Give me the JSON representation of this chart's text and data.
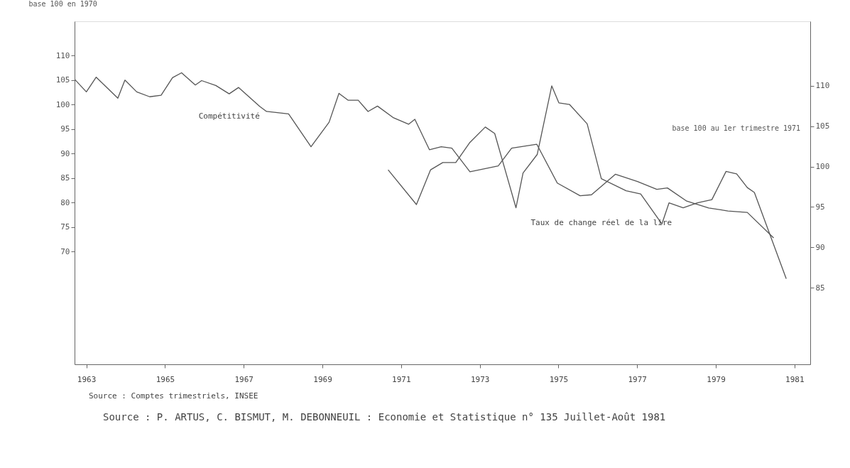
{
  "chart_data": {
    "type": "line",
    "ylabel": "base 100 en 1970",
    "y2label": "base 100 au 1er trimestre 1971",
    "xlim": [
      1962.7,
      1981.4
    ],
    "xticks": [
      1963,
      1965,
      1967,
      1969,
      1971,
      1973,
      1975,
      1977,
      1979,
      1981
    ],
    "ylim": [
      47,
      117
    ],
    "yticks": [
      70,
      75,
      80,
      85,
      90,
      95,
      100,
      105,
      110
    ],
    "y2lim": [
      75.5,
      118
    ],
    "y2ticks": [
      85,
      90,
      95,
      100,
      105,
      110
    ],
    "grid": false,
    "legend": false,
    "marker": "none",
    "line_style": "solid",
    "series": [
      {
        "name": "Compétitivité",
        "color": "#555555",
        "x": [
          1962.71,
          1963.0,
          1963.25,
          1963.8,
          1963.98,
          1964.28,
          1964.61,
          1964.9,
          1965.19,
          1965.42,
          1965.77,
          1965.93,
          1966.29,
          1966.63,
          1966.87,
          1967.41,
          1967.58,
          1968.14,
          1968.71,
          1969.17,
          1969.42,
          1969.65,
          1969.91,
          1970.16,
          1970.4,
          1970.81,
          1971.19,
          1971.35,
          1971.72,
          1972.02,
          1972.29,
          1972.75,
          1973.47,
          1973.81,
          1974.45,
          1974.97,
          1975.55,
          1975.84,
          1976.45,
          1977.01,
          1977.5,
          1977.77,
          1978.26,
          1978.82,
          1979.31,
          1979.8,
          1980.47
        ],
        "values": [
          105.1,
          102.6,
          105.6,
          101.3,
          105.0,
          102.6,
          101.6,
          101.9,
          105.5,
          106.5,
          104.0,
          104.9,
          103.9,
          102.2,
          103.5,
          99.6,
          98.6,
          98.1,
          91.4,
          96.4,
          102.3,
          100.9,
          100.9,
          98.6,
          99.7,
          97.3,
          96.0,
          97.0,
          90.8,
          91.4,
          91.1,
          86.3,
          87.5,
          91.1,
          91.9,
          84.0,
          81.4,
          81.6,
          85.8,
          84.3,
          82.7,
          83.0,
          80.3,
          78.9,
          78.3,
          78.0,
          72.8
        ]
      },
      {
        "name": "Taux de change réel de la lire",
        "color": "#555555",
        "axis": "y2",
        "x": [
          1970.67,
          1971.39,
          1971.75,
          1972.06,
          1972.39,
          1972.75,
          1973.14,
          1973.38,
          1973.92,
          1974.1,
          1974.46,
          1974.83,
          1975.01,
          1975.28,
          1975.73,
          1976.09,
          1976.72,
          1977.09,
          1977.63,
          1977.81,
          1978.17,
          1978.53,
          1978.9,
          1979.26,
          1979.53,
          1979.8,
          1979.98,
          1980.79
        ],
        "values": [
          99.6,
          95.3,
          99.6,
          100.5,
          100.5,
          103.0,
          104.9,
          104.1,
          94.9,
          99.2,
          101.5,
          110.0,
          107.9,
          107.7,
          105.3,
          98.5,
          97.0,
          96.6,
          92.9,
          95.5,
          94.9,
          95.5,
          95.9,
          99.4,
          99.1,
          97.4,
          96.8,
          86.1
        ]
      }
    ],
    "annotations": [
      "Source : Comptes trimestriels, INSEE",
      "Source : P. ARTUS, C. BISMUT, M. DEBONNEUIL : Economie et Statistique n° 135 Juillet-Août 1981"
    ]
  }
}
